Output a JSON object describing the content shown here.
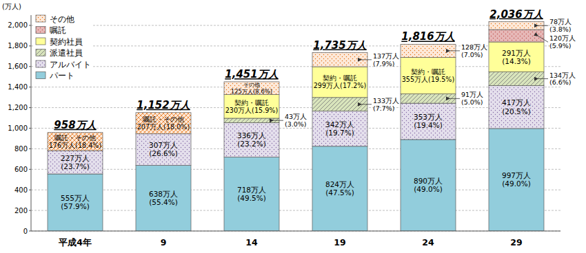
{
  "chart_data": {
    "type": "bar",
    "stacked": true,
    "data_labels": true,
    "grid": true,
    "legend": "top-left",
    "y_label": "(万人)",
    "categories": [
      "平成4年",
      "9",
      "14",
      "19",
      "24",
      "29"
    ],
    "ylim": [
      0,
      2100
    ],
    "yticks": [
      0,
      200,
      400,
      600,
      800,
      {
        "value": 1000,
        "label": "1,000"
      },
      {
        "value": 1200,
        "label": "1,200"
      },
      {
        "value": 1400,
        "label": "1,400"
      },
      {
        "value": 1600,
        "label": "1,600"
      },
      {
        "value": 1800,
        "label": "1,800"
      },
      {
        "value": 2000,
        "label": "2,000"
      }
    ],
    "series": [
      {
        "name": "パート",
        "color": "#92cddc",
        "values": [
          555,
          638,
          718,
          824,
          890,
          997
        ],
        "value_labels": [
          "555万人\n(57.9%)",
          "638万人\n(55.4%)",
          "718万人\n(49.5%)",
          "824万人\n(47.5%)",
          "890万人\n(49.0%)",
          "997万人\n(49.0%)"
        ]
      },
      {
        "name": "アルバイト",
        "color": "#e4dfec",
        "values": [
          227,
          307,
          336,
          342,
          353,
          417
        ],
        "value_labels": [
          "227万人\n(23.7%)",
          "307万人\n(26.6%)",
          "336万人\n(23.2%)",
          "342万人\n(19.7%)",
          "353万人\n(19.4%)",
          "417万人\n(20.5%)"
        ]
      },
      {
        "name": "派遣社員",
        "color": "#d8e4bc",
        "values": [
          null,
          null,
          43,
          133,
          91,
          134
        ],
        "value_labels": [
          null,
          null,
          "43万人\n(3.0%)",
          "133万人\n(7.7%)",
          "91万人\n(5.0%)",
          "134万人\n(6.6%)"
        ]
      },
      {
        "color": "#ffff99",
        "values": [
          null,
          null,
          230,
          299,
          355,
          null
        ],
        "value_labels": [
          null,
          null,
          "契約・嘱託\n230万人(15.9%)",
          "契約・嘱託\n299万人(17.2%)",
          "契約・嘱託\n355万人(19.5%)",
          null
        ]
      },
      {
        "name": "契約社員",
        "color": "#ffff99",
        "values": [
          null,
          null,
          null,
          null,
          null,
          291
        ],
        "value_labels": [
          null,
          null,
          null,
          null,
          null,
          "291万人\n(14.3%)"
        ]
      },
      {
        "name": "嘱託",
        "color": "#e6b8b7",
        "values": [
          null,
          null,
          null,
          null,
          null,
          120
        ],
        "value_labels": [
          null,
          null,
          null,
          null,
          null,
          "120万人\n(5.9%)"
        ]
      },
      {
        "color": "#fde9d9",
        "values": [
          176,
          207,
          null,
          null,
          null,
          null
        ],
        "value_labels": [
          "嘱託・その他\n176万人(18.4%)",
          "嘱託・その他\n207万人(18.0%)",
          null,
          null,
          null,
          null
        ]
      },
      {
        "name": "その他",
        "color": "#fde9d9",
        "values": [
          null,
          null,
          125,
          137,
          128,
          78
        ],
        "value_labels": [
          null,
          null,
          "その他\n125万人(8.6%)",
          "137万人\n(7.9%)",
          "128万人\n(7.0%)",
          "78万人\n(3.8%)"
        ]
      }
    ],
    "totals": {
      "values": [
        958,
        1152,
        1451,
        1735,
        1816,
        2036
      ],
      "value_labels": [
        "958万人",
        "1,152万人",
        "1,451万人",
        "1,735万人",
        "1,816万人",
        "2,036万人"
      ]
    }
  }
}
